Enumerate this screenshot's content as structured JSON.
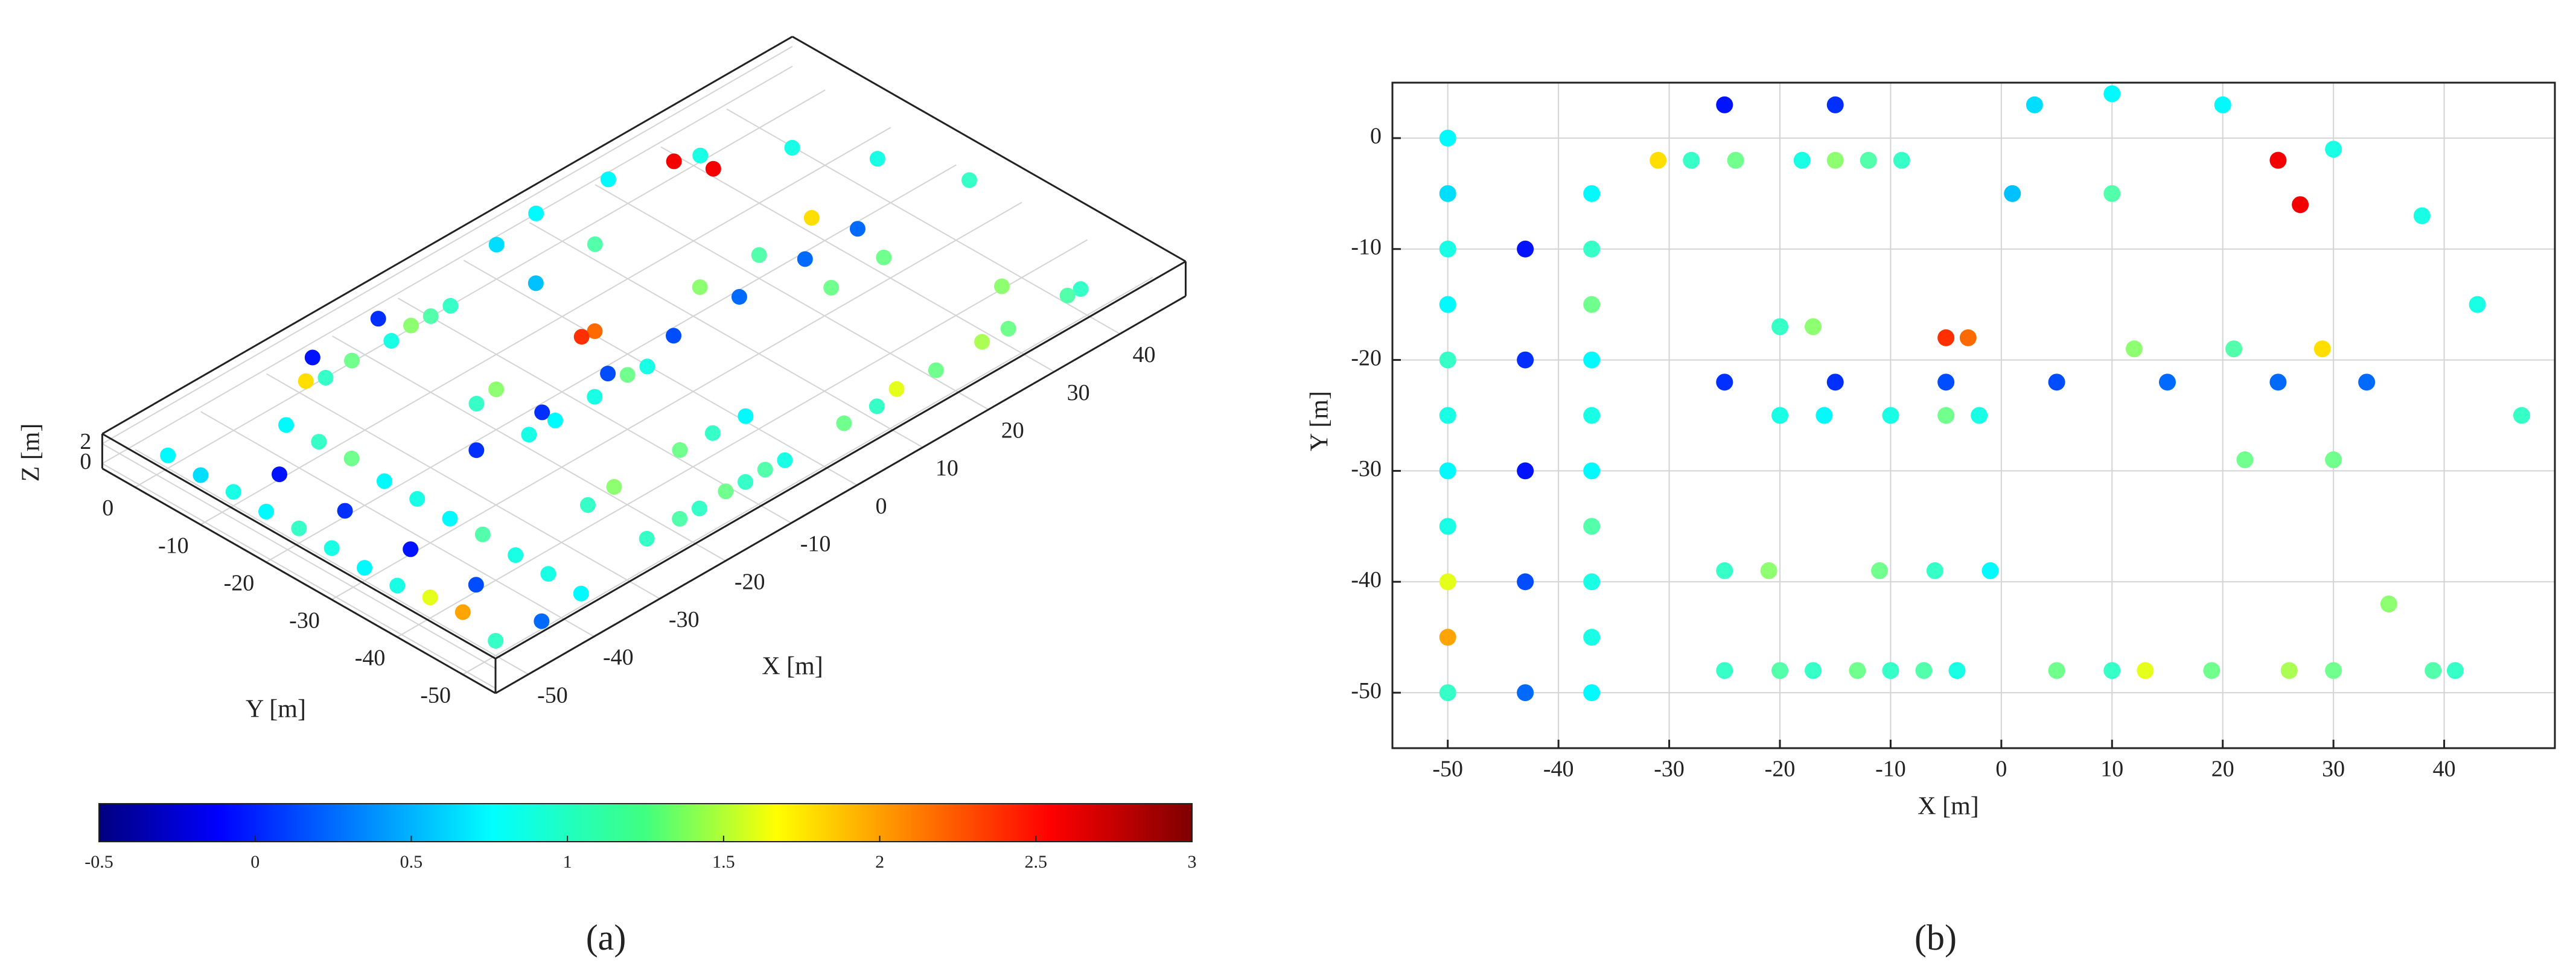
{
  "chart_data": [
    {
      "type": "scatter3d",
      "title": "(a)",
      "xlabel": "X [m]",
      "ylabel": "Y [m]",
      "zlabel": "Z [m]",
      "xlim": [
        -55,
        50
      ],
      "ylim": [
        -55,
        5
      ],
      "zlim": [
        -0.5,
        3
      ],
      "xticks": [
        -50,
        -40,
        -30,
        -20,
        -10,
        0,
        10,
        20,
        30,
        40
      ],
      "yticks": [
        -50,
        -40,
        -30,
        -20,
        -10,
        0
      ],
      "zticks": [
        0,
        2
      ],
      "grid": true,
      "colormap": "jet",
      "colorbar": {
        "lim": [
          -0.5,
          3
        ],
        "ticks": [
          -0.5,
          0,
          0.5,
          1,
          1.5,
          2,
          2.5,
          3
        ]
      },
      "x": [
        -50,
        -50,
        -50,
        -50,
        -50,
        -50,
        -50,
        -50,
        -50,
        -50,
        -50,
        -37,
        -37,
        -37,
        -37,
        -37,
        -37,
        -37,
        -37,
        -37,
        -37,
        -43,
        -43,
        -43,
        -43,
        -43,
        -31,
        -28,
        -24,
        -18,
        -15,
        -12,
        -9,
        -25,
        -15,
        -20,
        -17,
        -5,
        -3,
        -25,
        -15,
        -5,
        5,
        15,
        25,
        33,
        -20,
        -16,
        -10,
        -5,
        -2,
        12,
        21,
        29,
        22,
        30,
        -25,
        -21,
        -11,
        -6,
        -1,
        -25,
        -20,
        -17,
        -13,
        -10,
        -7,
        -4,
        5,
        10,
        13,
        19,
        26,
        30,
        39,
        41,
        1,
        3,
        10,
        20,
        30,
        38,
        43,
        47,
        10,
        27,
        25,
        35
      ],
      "y": [
        0,
        -5,
        -10,
        -15,
        -20,
        -25,
        -30,
        -35,
        -40,
        -45,
        -50,
        -5,
        -10,
        -15,
        -20,
        -25,
        -30,
        -35,
        -40,
        -45,
        -50,
        -10,
        -20,
        -30,
        -40,
        -50,
        -2,
        -2,
        -2,
        -2,
        -2,
        -2,
        -2,
        3,
        3,
        -17,
        -17,
        -18,
        -18,
        -22,
        -22,
        -22,
        -22,
        -22,
        -22,
        -22,
        -25,
        -25,
        -25,
        -25,
        -25,
        -19,
        -19,
        -19,
        -29,
        -29,
        -39,
        -39,
        -39,
        -39,
        -39,
        -48,
        -48,
        -48,
        -48,
        -48,
        -48,
        -48,
        -48,
        -48,
        -48,
        -48,
        -48,
        -48,
        -48,
        -48,
        -5,
        3,
        4,
        3,
        -1,
        -7,
        -15,
        -25,
        -5,
        -6,
        -2,
        -42
      ],
      "z": [
        0.8,
        0.7,
        0.9,
        0.8,
        1,
        0.9,
        0.8,
        0.9,
        1.6,
        2,
        1,
        0.8,
        1,
        1.2,
        0.8,
        0.9,
        0.8,
        1.1,
        0.9,
        0.9,
        0.8,
        0,
        0.1,
        0,
        0.2,
        0.3,
        1.8,
        1,
        1.2,
        0.9,
        1.3,
        1.1,
        1,
        0,
        0.1,
        1,
        1.3,
        2.4,
        2.2,
        0.1,
        0.1,
        0.2,
        0.2,
        0.3,
        0.3,
        0.3,
        0.9,
        0.8,
        0.9,
        1.2,
        0.9,
        1.3,
        1.1,
        1.8,
        1.2,
        1.2,
        1,
        1.3,
        1.2,
        1,
        0.8,
        1,
        1.1,
        1,
        1.2,
        1,
        1.1,
        0.9,
        1.2,
        1,
        1.6,
        1.2,
        1.4,
        1.2,
        1.1,
        1,
        0.6,
        0.7,
        0.8,
        0.8,
        0.9,
        0.9,
        0.9,
        1,
        1.1,
        2.6,
        2.6,
        1.3
      ]
    },
    {
      "type": "scatter",
      "title": "(b)",
      "xlabel": "X [m]",
      "ylabel": "Y [m]",
      "xlim": [
        -55,
        50
      ],
      "ylim": [
        -55,
        5
      ],
      "xticks": [
        -50,
        -40,
        -30,
        -20,
        -10,
        0,
        10,
        20,
        30,
        40
      ],
      "yticks": [
        -50,
        -40,
        -30,
        -20,
        -10,
        0
      ],
      "grid": true,
      "colormap": "jet",
      "clim": [
        -0.5,
        3
      ],
      "x": [
        -50,
        -50,
        -50,
        -50,
        -50,
        -50,
        -50,
        -50,
        -50,
        -50,
        -50,
        -37,
        -37,
        -37,
        -37,
        -37,
        -37,
        -37,
        -37,
        -37,
        -37,
        -43,
        -43,
        -43,
        -43,
        -43,
        -31,
        -28,
        -24,
        -18,
        -15,
        -12,
        -9,
        -25,
        -15,
        -20,
        -17,
        -5,
        -3,
        -25,
        -15,
        -5,
        5,
        15,
        25,
        33,
        -20,
        -16,
        -10,
        -5,
        -2,
        12,
        21,
        29,
        22,
        30,
        -25,
        -21,
        -11,
        -6,
        -1,
        -25,
        -20,
        -17,
        -13,
        -10,
        -7,
        -4,
        5,
        10,
        13,
        19,
        26,
        30,
        39,
        41,
        1,
        3,
        10,
        20,
        30,
        38,
        43,
        47,
        10,
        27,
        25,
        35
      ],
      "y": [
        0,
        -5,
        -10,
        -15,
        -20,
        -25,
        -30,
        -35,
        -40,
        -45,
        -50,
        -5,
        -10,
        -15,
        -20,
        -25,
        -30,
        -35,
        -40,
        -45,
        -50,
        -10,
        -20,
        -30,
        -40,
        -50,
        -2,
        -2,
        -2,
        -2,
        -2,
        -2,
        -2,
        3,
        3,
        -17,
        -17,
        -18,
        -18,
        -22,
        -22,
        -22,
        -22,
        -22,
        -22,
        -22,
        -25,
        -25,
        -25,
        -25,
        -25,
        -19,
        -19,
        -19,
        -29,
        -29,
        -39,
        -39,
        -39,
        -39,
        -39,
        -48,
        -48,
        -48,
        -48,
        -48,
        -48,
        -48,
        -48,
        -48,
        -48,
        -48,
        -48,
        -48,
        -48,
        -48,
        -5,
        3,
        4,
        3,
        -1,
        -7,
        -15,
        -25,
        -5,
        -6,
        -2,
        -42
      ],
      "z": [
        0.8,
        0.7,
        0.9,
        0.8,
        1,
        0.9,
        0.8,
        0.9,
        1.6,
        2,
        1,
        0.8,
        1,
        1.2,
        0.8,
        0.9,
        0.8,
        1.1,
        0.9,
        0.9,
        0.8,
        0,
        0.1,
        0,
        0.2,
        0.3,
        1.8,
        1,
        1.2,
        0.9,
        1.3,
        1.1,
        1,
        0,
        0.1,
        1,
        1.3,
        2.4,
        2.2,
        0.1,
        0.1,
        0.2,
        0.2,
        0.3,
        0.3,
        0.3,
        0.9,
        0.8,
        0.9,
        1.2,
        0.9,
        1.3,
        1.1,
        1.8,
        1.2,
        1.2,
        1,
        1.3,
        1.2,
        1,
        0.8,
        1,
        1.1,
        1,
        1.2,
        1,
        1.1,
        0.9,
        1.2,
        1,
        1.6,
        1.2,
        1.4,
        1.2,
        1.1,
        1,
        0.6,
        0.7,
        0.8,
        0.8,
        0.9,
        0.9,
        0.9,
        1,
        1.1,
        2.6,
        2.6,
        1.3
      ]
    }
  ]
}
